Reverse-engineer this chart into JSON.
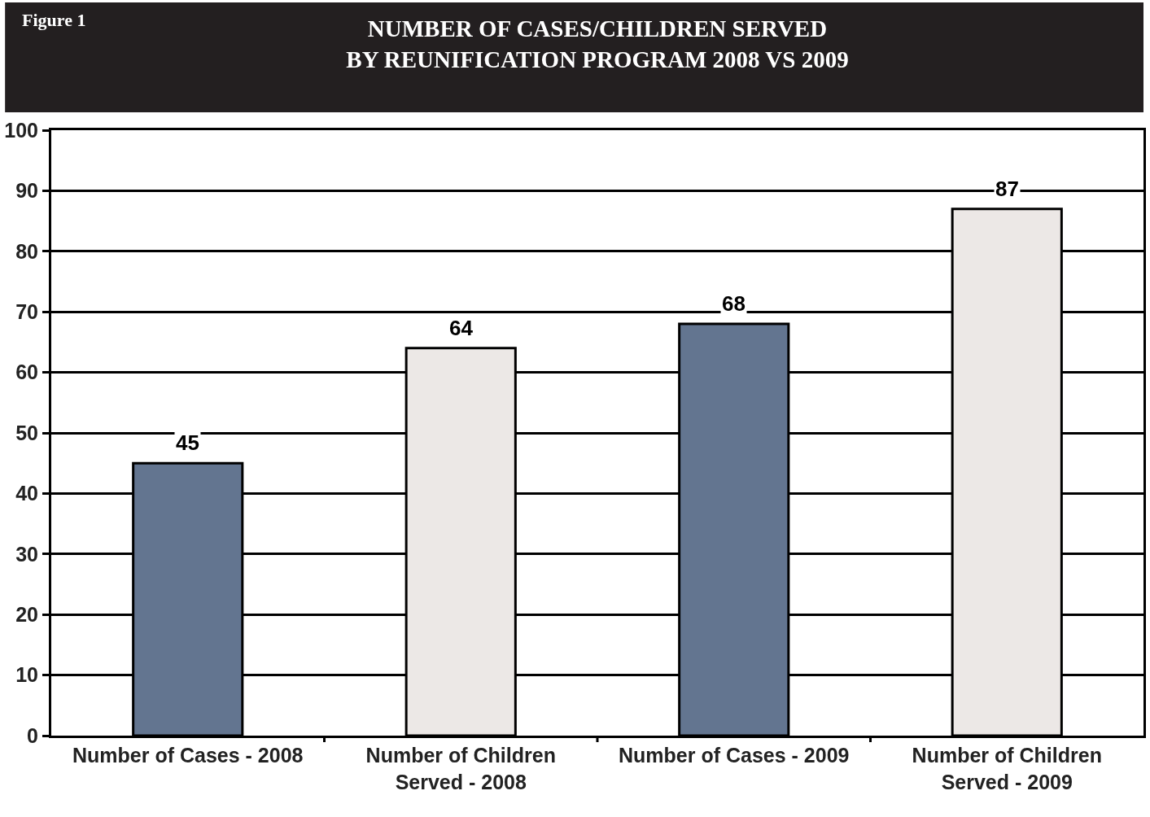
{
  "chart_data": {
    "type": "bar",
    "title": "NUMBER OF CASES/CHILDREN SERVED\nBY REUNIFICATION PROGRAM 2008 VS 2009",
    "annotations": [
      "Figure 1"
    ],
    "categories": [
      "Number of Cases - 2008",
      "Number of Children Served - 2008",
      "Number of Cases - 2009",
      "Number of Children Served - 2009"
    ],
    "values": [
      45,
      64,
      68,
      87
    ],
    "colors": [
      "#637590",
      "#ece8e6",
      "#637590",
      "#ece8e6"
    ],
    "ylim": [
      0,
      100
    ],
    "yticks": [
      0,
      10,
      20,
      30,
      40,
      50,
      60,
      70,
      80,
      90,
      100
    ],
    "grid": "y",
    "data_labels": true
  }
}
